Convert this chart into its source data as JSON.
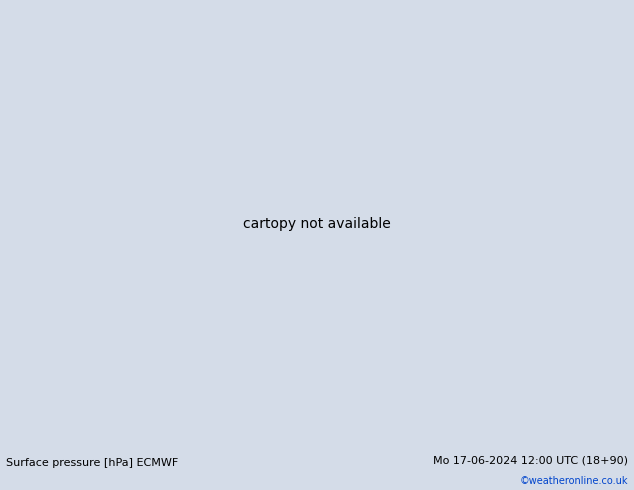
{
  "title_left": "Surface pressure [hPa] ECMWF",
  "title_right": "Mo 17-06-2024 12:00 UTC (18+90)",
  "copyright": "©weatheronline.co.uk",
  "bg_color": "#d4dce8",
  "land_color": "#c8eaaa",
  "land_edge": "#888888",
  "fig_width": 6.34,
  "fig_height": 4.9,
  "dpi": 100,
  "bottom_bar_color": "#e0e0e0",
  "extent": [
    90,
    185,
    -58,
    5
  ],
  "contour_colors": {
    "black": "#000000",
    "red": "#dd0000",
    "blue": "#0000cc"
  },
  "red_lw": 1.2,
  "blue_lw": 1.2,
  "black_lw": 1.8,
  "label_fontsize": 7.0
}
